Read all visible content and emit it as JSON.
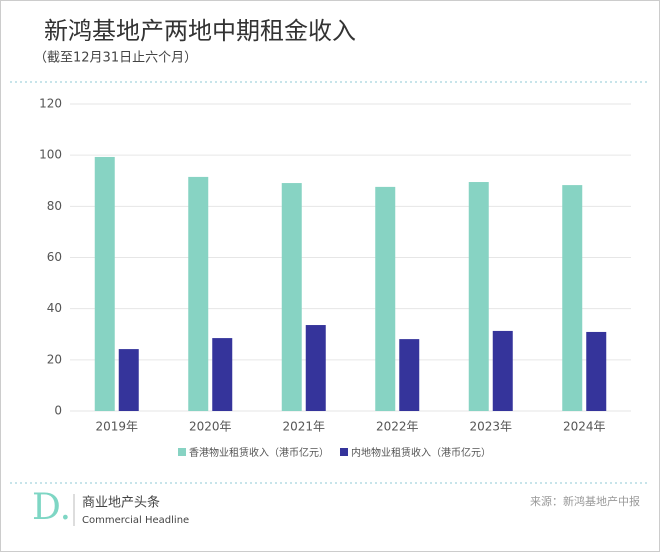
{
  "chart_data": {
    "type": "bar",
    "title": "新鸿基地产两地中期租金收入",
    "subtitle": "（截至12月31日止六个月）",
    "categories": [
      "2019年",
      "2020年",
      "2021年",
      "2022年",
      "2023年",
      "2024年"
    ],
    "series": [
      {
        "name": "香港物业租赁收入（港币亿元）",
        "color": "#87d3c3",
        "values": [
          99.3,
          91.5,
          89.1,
          87.6,
          89.5,
          88.3
        ]
      },
      {
        "name": "内地物业租赁收入（港币亿元）",
        "color": "#35349b",
        "values": [
          24.2,
          28.5,
          33.6,
          28.1,
          31.3,
          30.9
        ]
      }
    ],
    "ylim": [
      0,
      120
    ],
    "yticks": [
      0,
      20,
      40,
      60,
      80,
      100,
      120
    ],
    "grid": true,
    "legend": "bottom"
  },
  "footer": {
    "logo": "D.",
    "brand_cn": "商业地产头条",
    "brand_en": "Commercial Headline",
    "source": "来源：新鸿基地产中报"
  }
}
